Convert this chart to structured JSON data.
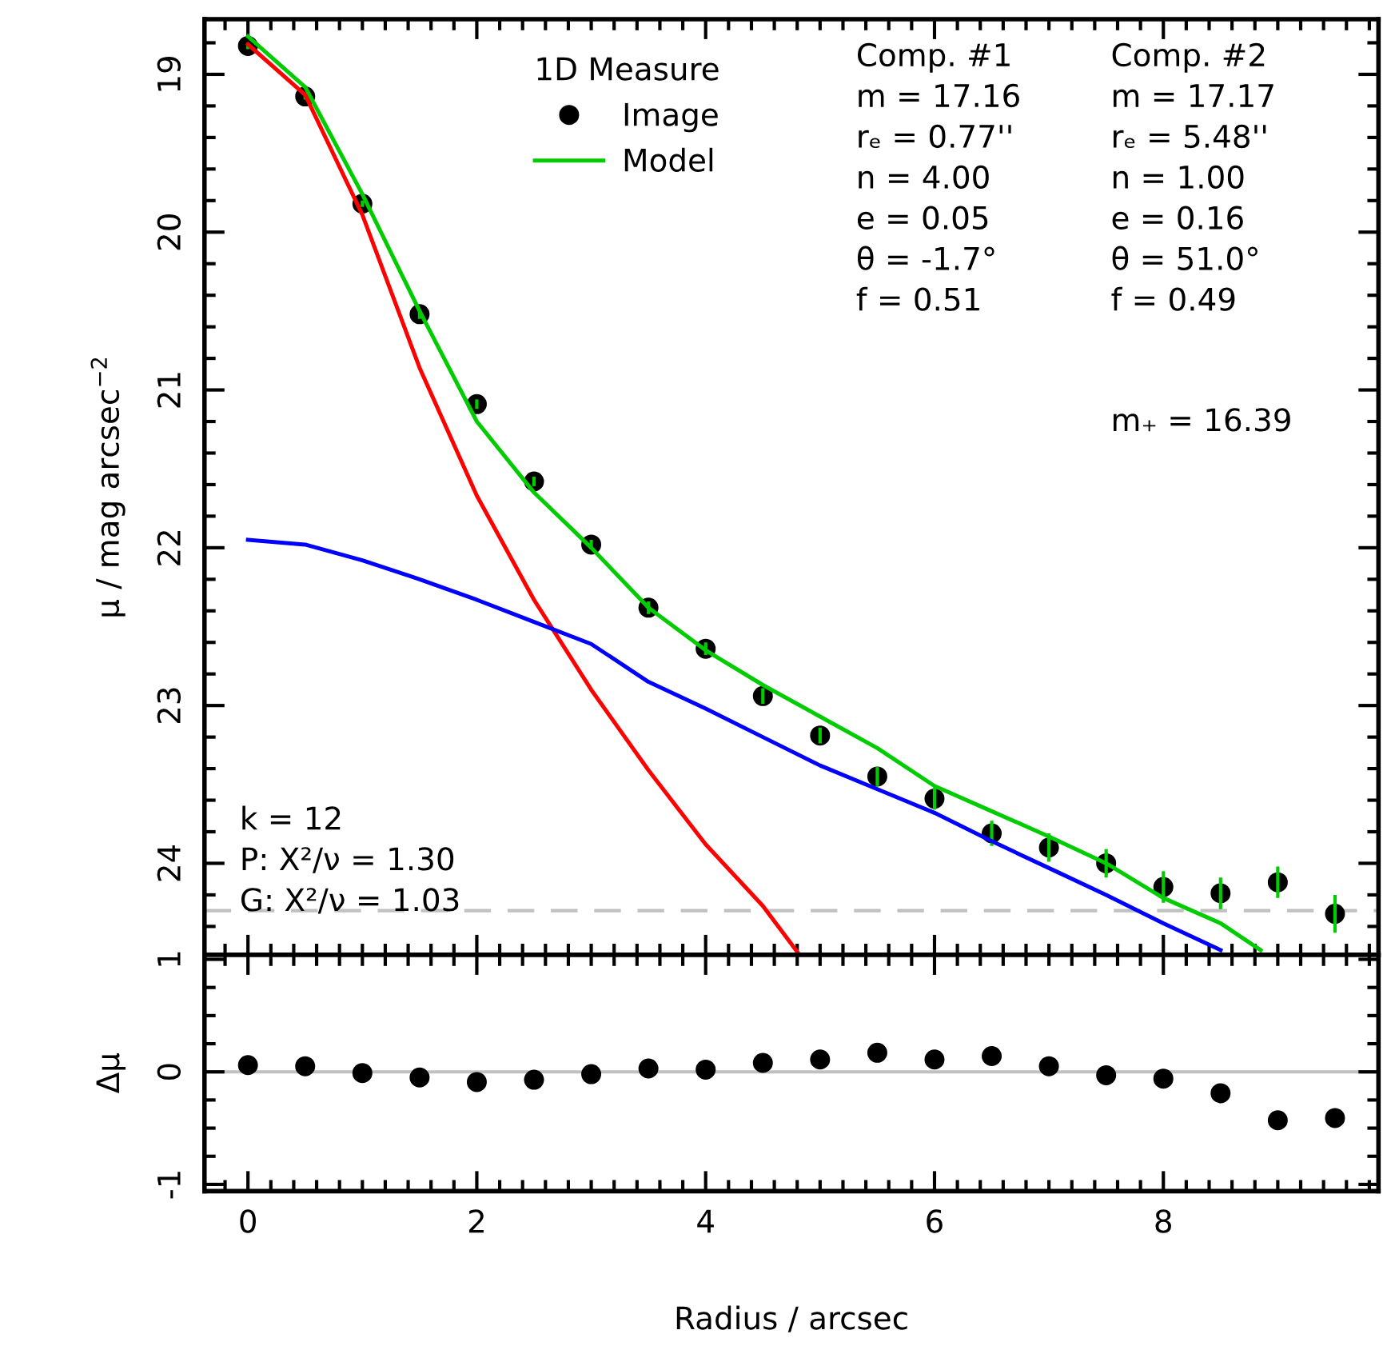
{
  "chart_data": [
    {
      "type": "scatter",
      "ylabel": "μ / mag arcsec$^{−2}$",
      "legend_title": "1D Measure",
      "legend": "top",
      "tick_labels": "y",
      "xlim": [
        -0.38,
        9.88
      ],
      "xticks": [
        0,
        2,
        4,
        6,
        8
      ],
      "ylim": [
        24.58,
        18.65
      ],
      "yticks": [
        19,
        20,
        21,
        22,
        23,
        24
      ],
      "x": [
        0,
        0.5,
        1,
        1.5,
        2,
        2.5,
        3,
        3.5,
        4,
        4.5,
        5,
        5.5,
        6,
        6.5,
        7,
        7.5,
        8,
        8.5,
        9,
        9.5
      ],
      "series": [
        {
          "name": "Image",
          "type": "scatter",
          "color": "#000000",
          "marker": "circle",
          "values": [
            18.82,
            19.14,
            19.82,
            20.52,
            21.09,
            21.58,
            21.98,
            22.38,
            22.64,
            22.94,
            23.19,
            23.45,
            23.59,
            23.81,
            23.9,
            24.0,
            24.15,
            24.19,
            24.12,
            24.32
          ],
          "errors": [
            0.02,
            0.02,
            0.02,
            0.03,
            0.03,
            0.03,
            0.03,
            0.04,
            0.04,
            0.05,
            0.05,
            0.06,
            0.07,
            0.08,
            0.09,
            0.09,
            0.1,
            0.1,
            0.1,
            0.12
          ]
        },
        {
          "name": "Model",
          "type": "line",
          "color": "#00cc00",
          "x": [
            0,
            0.5,
            1,
            1.5,
            2,
            2.5,
            3,
            3.5,
            4,
            4.5,
            5,
            5.5,
            6,
            6.5,
            7,
            7.5,
            8,
            8.5,
            8.85
          ],
          "values": [
            18.76,
            19.08,
            19.76,
            20.5,
            21.2,
            21.65,
            22.0,
            22.38,
            22.65,
            22.87,
            23.07,
            23.27,
            23.51,
            23.67,
            23.83,
            24.0,
            24.22,
            24.38,
            24.55
          ]
        },
        {
          "type": "line",
          "color": "#ff0000",
          "x": [
            0,
            0.5,
            1,
            1.5,
            2,
            2.5,
            3,
            3.5,
            4,
            4.5,
            4.8
          ],
          "values": [
            18.81,
            19.13,
            19.89,
            20.86,
            21.67,
            22.33,
            22.9,
            23.41,
            23.88,
            24.27,
            24.56
          ]
        },
        {
          "type": "line",
          "color": "#0000ff",
          "x": [
            0,
            0.5,
            1,
            1.5,
            2,
            2.5,
            3,
            3.5,
            4,
            4.5,
            5,
            5.5,
            6,
            6.5,
            7,
            7.5,
            8,
            8.5
          ],
          "values": [
            21.95,
            21.98,
            22.08,
            22.2,
            22.33,
            22.47,
            22.61,
            22.85,
            23.02,
            23.2,
            23.38,
            23.53,
            23.68,
            23.86,
            24.03,
            24.2,
            24.38,
            24.55
          ]
        }
      ],
      "ref_lines": [
        {
          "axis": "y",
          "value": 24.3,
          "color": "#c0c0c0",
          "line_style": "dashed"
        }
      ],
      "annotations": [
        "Comp. #1\nm = 17.16\nrₑ = 0.77''\nn = 4.00\ne = 0.05\nθ = -1.7°\nf = 0.51",
        "Comp. #2\nm = 17.17\nrₑ = 5.48''\nn = 1.00\ne = 0.16\nθ = 51.0°\nf = 0.49",
        "m₊ = 16.39",
        "k = 12\nP: X²/ν = 1.30\nG: X²/ν = 1.03"
      ]
    },
    {
      "type": "scatter",
      "ylabel": "Δμ",
      "xlabel": "Radius / arcsec",
      "color": "#000000",
      "marker": "circle",
      "xlim": [
        -0.38,
        9.88
      ],
      "xticks": [
        0,
        2,
        4,
        6,
        8
      ],
      "ylim": [
        -1.06,
        1.04
      ],
      "yticks": [
        -1,
        0,
        1
      ],
      "x": [
        0,
        0.5,
        1,
        1.5,
        2,
        2.5,
        3,
        3.5,
        4,
        4.5,
        5,
        5.5,
        6,
        6.5,
        7,
        7.5,
        8,
        8.5,
        9,
        9.5
      ],
      "values": [
        0.06,
        0.05,
        -0.01,
        -0.05,
        -0.09,
        -0.07,
        -0.02,
        0.03,
        0.02,
        0.08,
        0.11,
        0.17,
        0.11,
        0.14,
        0.05,
        -0.03,
        -0.06,
        -0.19,
        -0.43,
        -0.41
      ],
      "ref_lines": [
        {
          "axis": "y",
          "value": 0,
          "color": "#c0c0c0",
          "line_style": "solid"
        }
      ]
    }
  ]
}
